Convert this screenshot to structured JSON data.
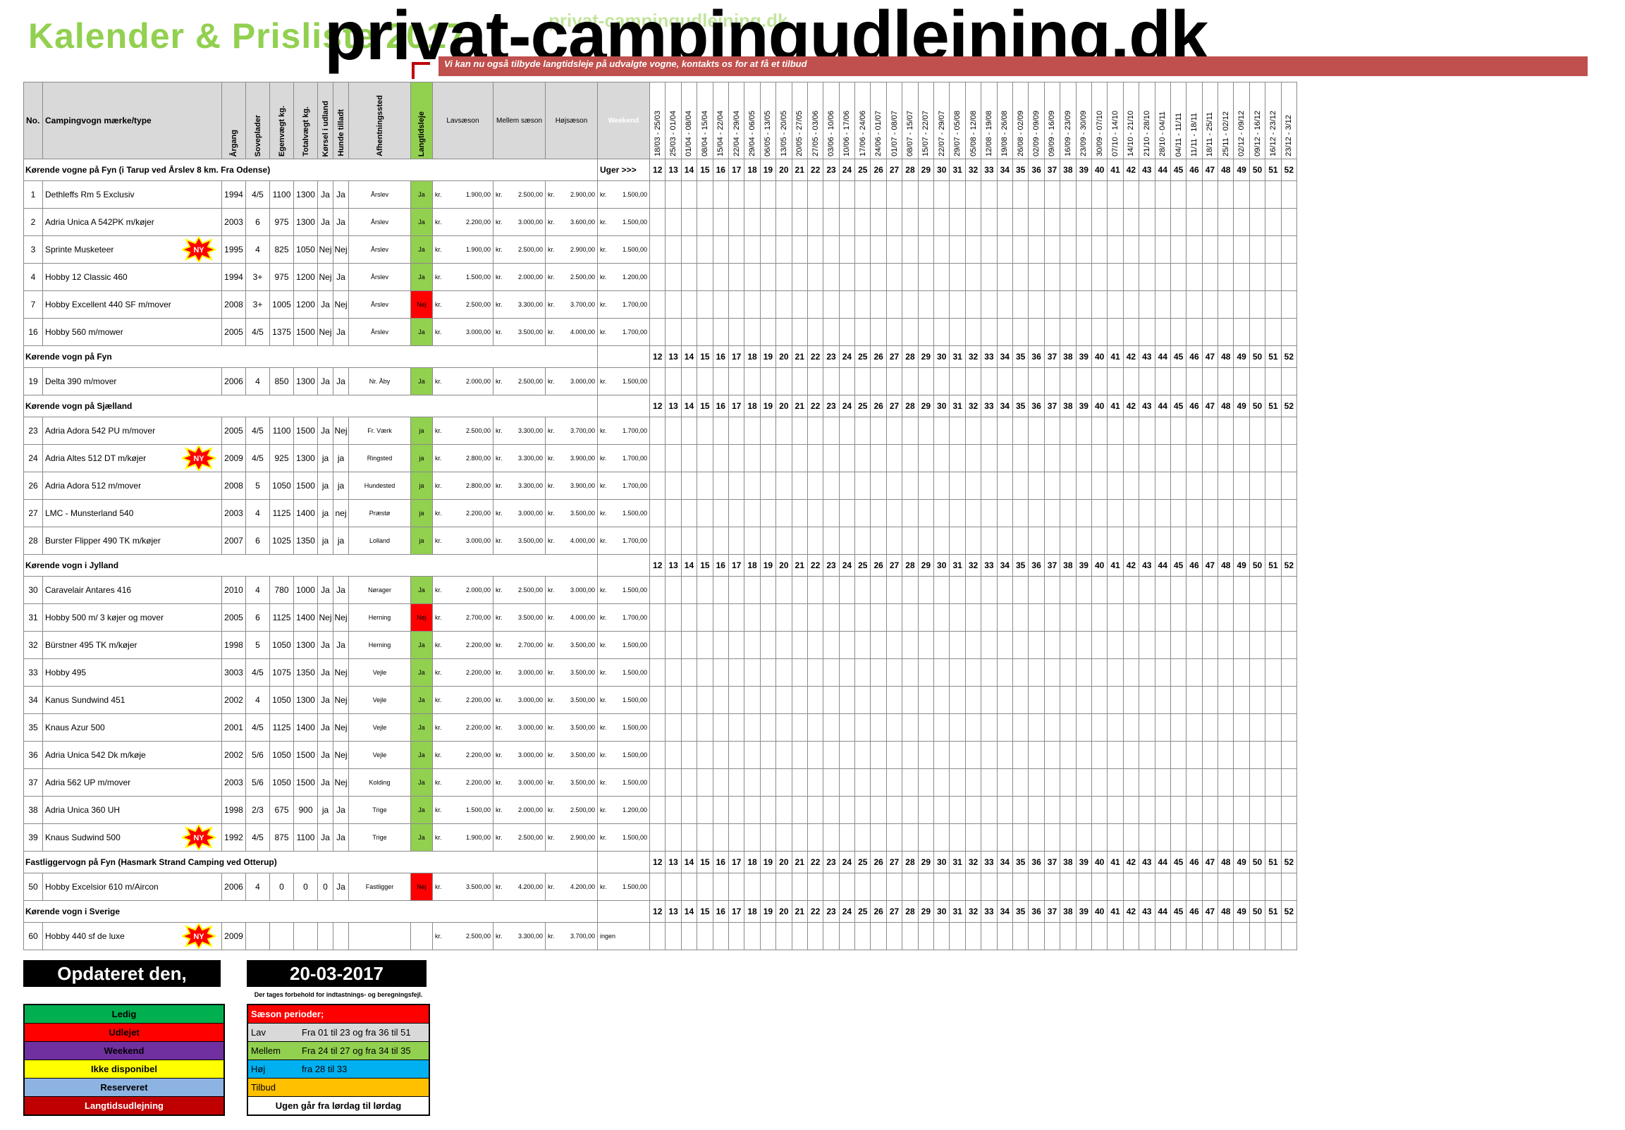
{
  "header": {
    "title": "Kalender & Prisliste 2017",
    "site": "privat-campingudlejning.dk",
    "site_faint": "privat-campingudlejning.dk",
    "banner": "Vi kan nu også tilbyde langtidsleje på udvalgte vogne, kontakts os for at få et tilbud"
  },
  "columns": {
    "no": "No.",
    "name": "Campingvogn mærke/type",
    "year": "Årgang",
    "beds": "Soveplader",
    "weight": "Egenvægt kg.",
    "total": "Totalvægt kg.",
    "abroad": "Kørsel i udland",
    "dogs": "Hunde tilladt",
    "pickup": "Afhentningssted",
    "longterm": "Langtidsleje",
    "low": "Lavsæson",
    "mid": "Mellem sæson",
    "high": "Højsæson",
    "weekend": "Weekend"
  },
  "week_dates": [
    "18/03 - 25/03",
    "25/03 - 01/04",
    "01/04 - 08/04",
    "08/04 - 15/04",
    "15/04 - 22/04",
    "22/04 - 29/04",
    "29/04 - 06/05",
    "06/05 - 13/05",
    "13/05 - 20/05",
    "20/05 - 27/05",
    "27/05 - 03/06",
    "03/06 - 10/06",
    "10/06 - 17/06",
    "17/06 - 24/06",
    "24/06 - 01/07",
    "01/07 - 08/07",
    "08/07 - 15/07",
    "15/07 - 22/07",
    "22/07 - 29/07",
    "29/07 - 05/08",
    "05/08 - 12/08",
    "12/08 - 19/08",
    "19/08 - 26/08",
    "26/08 - 02/09",
    "02/09 - 09/09",
    "09/09 - 16/09",
    "16/09 - 23/09",
    "23/09 - 30/09",
    "30/09 - 07/10",
    "07/10 - 14/10",
    "14/10 - 21/10",
    "21/10 - 28/10",
    "28/10 - 04/11",
    "04/11 - 11/11",
    "11/11 - 18/11",
    "18/11 - 25/11",
    "25/11 - 02/12",
    "02/12 - 09/12",
    "09/12 - 16/12",
    "16/12 - 23/12",
    "23/12 - 3/12"
  ],
  "weeks": [
    "12",
    "13",
    "14",
    "15",
    "16",
    "17",
    "18",
    "19",
    "20",
    "21",
    "22",
    "23",
    "24",
    "25",
    "26",
    "27",
    "28",
    "29",
    "30",
    "31",
    "32",
    "33",
    "34",
    "35",
    "36",
    "37",
    "38",
    "39",
    "40",
    "41",
    "42",
    "43",
    "44",
    "45",
    "46",
    "47",
    "48",
    "49",
    "50",
    "51",
    "52"
  ],
  "week_season": [
    "l",
    "l",
    "l",
    "o",
    "o",
    "l",
    "l",
    "o",
    "l",
    "o",
    "l",
    "o",
    "m",
    "m",
    "m",
    "m",
    "h",
    "h",
    "h",
    "h",
    "h",
    "m",
    "m",
    "m",
    "l",
    "l",
    "l",
    "l",
    "l",
    "l",
    "o",
    "l",
    "l",
    "l",
    "l",
    "l",
    "l",
    "l",
    "l",
    "o",
    "o"
  ],
  "uger_label": "Uger >>>",
  "sections": [
    {
      "label": "Kørende vogne på Fyn (i Tarup ved Årslev 8 km. Fra Odense)",
      "has_uger": true,
      "rows": [
        {
          "no": "1",
          "name": "Dethleffs Rm 5 Exclusiv",
          "ny": false,
          "year": "1994",
          "beds": "4/5",
          "weight": "1100",
          "total": "1300",
          "abroad": "Ja",
          "dogs": "Ja",
          "pickup": "Årslev",
          "lt": "Ja",
          "low": "1.900,00",
          "mid": "2.500,00",
          "high": "2.900,00",
          "wknd": "1.500,00",
          "cal": "GGGGGGGGGGPGGGGGRGRRRGGGGGGGGGGGGGGGGGGGG"
        },
        {
          "no": "2",
          "name": "Adria Unica A 542PK m/køjer",
          "ny": false,
          "year": "2003",
          "beds": "6",
          "weight": "975",
          "total": "1300",
          "abroad": "Ja",
          "dogs": "Ja",
          "pickup": "Årslev",
          "lt": "Ja",
          "low": "2.200,00",
          "mid": "3.000,00",
          "high": "3.600,00",
          "wknd": "1.500,00",
          "cal": "GGGGGGGGGGGGGGGGRRGPGGGGGGGGGGGGGGGGGGGGG"
        },
        {
          "no": "3",
          "name": "Sprinte Musketeer",
          "ny": true,
          "year": "1995",
          "beds": "4",
          "weight": "825",
          "total": "1050",
          "abroad": "Nej",
          "dogs": "Nej",
          "pickup": "Årslev",
          "lt": "Ja",
          "low": "1.900,00",
          "mid": "2.500,00",
          "high": "2.900,00",
          "wknd": "1.500,00",
          "cal": "GGGGGGGGGGGGGGGGGRGGGGGGGGGGGGGGGGGGGGGGG"
        },
        {
          "no": "4",
          "name": "Hobby 12 Classic 460",
          "ny": false,
          "year": "1994",
          "beds": "3+",
          "weight": "975",
          "total": "1200",
          "abroad": "Nej",
          "dogs": "Ja",
          "pickup": "Årslev",
          "lt": "Ja",
          "low": "1.500,00",
          "mid": "2.000,00",
          "high": "2.500,00",
          "wknd": "1.200,00",
          "cal": "GGGGGGGGGGGRGGGGRRGGGGGGGGGGGGGGGGGGGGGGG"
        },
        {
          "no": "7",
          "name": "Hobby  Excellent 440 SF m/mover",
          "ny": false,
          "year": "2008",
          "beds": "3+",
          "weight": "1005",
          "total": "1200",
          "abroad": "Ja",
          "dogs": "Nej",
          "pickup": "Årslev",
          "lt": "Nej",
          "low": "2.500,00",
          "mid": "3.300,00",
          "high": "3.700,00",
          "wknd": "1.700,00",
          "cal": "YYYYGGGGGGGGGGGGGRGGYYGGGGGGGGGGGGGGGGGGG"
        },
        {
          "no": "16",
          "name": "Hobby 560 m/mower",
          "ny": false,
          "year": "2005",
          "beds": "4/5",
          "weight": "1375",
          "total": "1500",
          "abroad": "Nej",
          "dogs": "Ja",
          "pickup": "Årslev",
          "lt": "Ja",
          "low": "3.000,00",
          "mid": "3.500,00",
          "high": "4.000,00",
          "wknd": "1.700,00",
          "cal": "GGGGGGGGGGGGGGRRGRRGPGGGGGGGGGGGGGGGGGGGG"
        }
      ]
    },
    {
      "label": "Kørende vogn på Fyn",
      "has_uger": false,
      "rows": [
        {
          "no": "19",
          "name": "Delta 390 m/mover",
          "ny": false,
          "year": "2006",
          "beds": "4",
          "weight": "850",
          "total": "1300",
          "abroad": "Ja",
          "dogs": "Ja",
          "pickup": "Nr. Åby",
          "lt": "Ja",
          "low": "2.000,00",
          "mid": "2.500,00",
          "high": "3.000,00",
          "wknd": "1.500,00",
          "cal": "GGGGGGGGGGGGPGGBBRGGPGGGGGGGGGGGGGGGGGGGG"
        }
      ]
    },
    {
      "label": "Kørende vogn på Sjælland",
      "has_uger": false,
      "rows": [
        {
          "no": "23",
          "name": "Adria Adora 542 PU  m/mover",
          "ny": false,
          "year": "2005",
          "beds": "4/5",
          "weight": "1100",
          "total": "1500",
          "abroad": "Ja",
          "dogs": "Nej",
          "pickup": "Fr. Værk",
          "lt": "ja",
          "low": "2.500,00",
          "mid": "3.300,00",
          "high": "3.700,00",
          "wknd": "1.700,00",
          "cal": "YYGGGGGGGPGGGGRRRRGGGYYYYGGGGGGGGGGGGGGGG"
        },
        {
          "no": "24",
          "name": "Adria Altes 512 DT m/køjer",
          "ny": true,
          "year": "2009",
          "beds": "4/5",
          "weight": "925",
          "total": "1300",
          "abroad": "ja",
          "dogs": "ja",
          "pickup": "Ringsted",
          "lt": "ja",
          "low": "2.800,00",
          "mid": "3.300,00",
          "high": "3.900,00",
          "wknd": "1.700,00",
          "cal": "GGGGPPGPGYGPGGGYYRGGGPGPGPGGGGGGGGGGGGGGG"
        },
        {
          "no": "26",
          "name": "Adria Adora 512  m/mover",
          "ny": false,
          "year": "2008",
          "beds": "5",
          "weight": "1050",
          "total": "1500",
          "abroad": "ja",
          "dogs": "ja",
          "pickup": "Hundested",
          "lt": "ja",
          "low": "2.800,00",
          "mid": "3.300,00",
          "high": "3.900,00",
          "wknd": "1.700,00",
          "cal": "GGGRGGGGGPGGGGRRGGGGGYYYGGGGGGGGGGGGGGGGG"
        },
        {
          "no": "27",
          "name": "LMC - Munsterland 540",
          "ny": false,
          "year": "2003",
          "beds": "4",
          "weight": "1125",
          "total": "1400",
          "abroad": "ja",
          "dogs": "nej",
          "pickup": "Præstø",
          "lt": "ja",
          "low": "2.200,00",
          "mid": "3.000,00",
          "high": "3.500,00",
          "wknd": "1.500,00",
          "cal": "GGGYYGGGGGGGGGGGRRGGGGGGGGGGGGGGGGGGGGGGG"
        },
        {
          "no": "28",
          "name": "Burster Flipper  490 TK m/køjer",
          "ny": false,
          "year": "2007",
          "beds": "6",
          "weight": "1025",
          "total": "1350",
          "abroad": "ja",
          "dogs": "ja",
          "pickup": "Lolland",
          "lt": "ja",
          "low": "3.000,00",
          "mid": "3.500,00",
          "high": "4.000,00",
          "wknd": "1.700,00",
          "cal": "GGGGGGGRGGGGGGRGRGGGGGGGGGGGGGGGGGGGGGGGG"
        }
      ]
    },
    {
      "label": "Kørende vogn i Jylland",
      "has_uger": false,
      "rows": [
        {
          "no": "30",
          "name": "Caravelair Antares 416",
          "ny": false,
          "year": "2010",
          "beds": "4",
          "weight": "780",
          "total": "1000",
          "abroad": "Ja",
          "dogs": "Ja",
          "pickup": "Nørager",
          "lt": "Ja",
          "low": "2.000,00",
          "mid": "2.500,00",
          "high": "3.000,00",
          "wknd": "1.500,00",
          "cal": "GGGGGGGGGGGGGGRRRRRGGGGGGGGGGGGGGGGGGGGGG"
        },
        {
          "no": "31",
          "name": "Hobby 500 m/ 3 køjer og mover",
          "ny": false,
          "year": "2005",
          "beds": "6",
          "weight": "1125",
          "total": "1400",
          "abroad": "Nej",
          "dogs": "Nej",
          "pickup": "Herning",
          "lt": "Nej",
          "low": "2.700,00",
          "mid": "3.500,00",
          "high": "4.000,00",
          "wknd": "1.700,00",
          "cal": "YYYGGGGGGGGGGGGGGRRGGGGGGGGGGGGGGGGGGGGGG"
        },
        {
          "no": "32",
          "name": "Bürstner 495 TK m/køjer",
          "ny": false,
          "year": "1998",
          "beds": "5",
          "weight": "1050",
          "total": "1300",
          "abroad": "Ja",
          "dogs": "Ja",
          "pickup": "Herning",
          "lt": "Ja",
          "low": "2.200,00",
          "mid": "2.700,00",
          "high": "3.500,00",
          "wknd": "1.500,00",
          "cal": "GGGGGGGGGGGGGGRRGRRGGGGGGGGGGGGGGGGGGGGGG"
        },
        {
          "no": "33",
          "name": "Hobby 495",
          "ny": false,
          "year": "3003",
          "beds": "4/5",
          "weight": "1075",
          "total": "1350",
          "abroad": "Ja",
          "dogs": "Nej",
          "pickup": "Vejle",
          "lt": "Ja",
          "low": "2.200,00",
          "mid": "3.000,00",
          "high": "3.500,00",
          "wknd": "1.500,00",
          "cal": "GGGGGGGGGGGGGGGRGRGGGGGGGGGGGGGGGGGGGGGGG"
        },
        {
          "no": "34",
          "name": "Kanus Sundwind 451",
          "ny": false,
          "year": "2002",
          "beds": "4",
          "weight": "1050",
          "total": "1300",
          "abroad": "Ja",
          "dogs": "Nej",
          "pickup": "Vejle",
          "lt": "Ja",
          "low": "2.200,00",
          "mid": "3.000,00",
          "high": "3.500,00",
          "wknd": "1.500,00",
          "cal": "LLLLLLLLLLLGGGGGGRGGGGGGGGGGGGGGGGGGGGGGG"
        },
        {
          "no": "35",
          "name": "Knaus Azur 500",
          "ny": false,
          "year": "2001",
          "beds": "4/5",
          "weight": "1125",
          "total": "1400",
          "abroad": "Ja",
          "dogs": "Nej",
          "pickup": "Vejle",
          "lt": "Ja",
          "low": "2.200,00",
          "mid": "3.000,00",
          "high": "3.500,00",
          "wknd": "1.500,00",
          "cal": "LLLLLLLLLLLLGGGGGRGGGGGGGGGGGGGGGGGGGGGGG"
        },
        {
          "no": "36",
          "name": "Adria Unica 542 Dk m/køje",
          "ny": false,
          "year": "2002",
          "beds": "5/6",
          "weight": "1050",
          "total": "1500",
          "abroad": "Ja",
          "dogs": "Nej",
          "pickup": "Vejle",
          "lt": "Ja",
          "low": "2.200,00",
          "mid": "3.000,00",
          "high": "3.500,00",
          "wknd": "1.500,00",
          "cal": "LLLGGGGGGGGGGGGRRRGGGGGGGGGGGGGGGGGGGGGGG"
        },
        {
          "no": "37",
          "name": "Adria 562 UP m/mover",
          "ny": false,
          "year": "2003",
          "beds": "5/6",
          "weight": "1050",
          "total": "1500",
          "abroad": "Ja",
          "dogs": "Nej",
          "pickup": "Kolding",
          "lt": "Ja",
          "low": "2.200,00",
          "mid": "3.000,00",
          "high": "3.500,00",
          "wknd": "1.500,00",
          "cal": "GGGGGGGGGGGGGGGRRRGGGGGGGGGGGGGGGGGGGGGGG"
        },
        {
          "no": "38",
          "name": "Adria Unica 360 UH",
          "ny": false,
          "year": "1998",
          "beds": "2/3",
          "weight": "675",
          "total": "900",
          "abroad": "ja",
          "dogs": "Ja",
          "pickup": "Trige",
          "lt": "Ja",
          "low": "1.500,00",
          "mid": "2.000,00",
          "high": "2.500,00",
          "wknd": "1.200,00",
          "cal": "GGGGGGGGGGGGGGGGGRGGGGGGGGGGGGGGGGGGGGGGG"
        },
        {
          "no": "39",
          "name": "Knaus Sudwind 500",
          "ny": true,
          "year": "1992",
          "beds": "4/5",
          "weight": "875",
          "total": "1100",
          "abroad": "Ja",
          "dogs": "Ja",
          "pickup": "Trige",
          "lt": "Ja",
          "low": "1.900,00",
          "mid": "2.500,00",
          "high": "2.900,00",
          "wknd": "1.500,00",
          "cal": "GGGGGGGGGGGGGGGGGRGGGGGGGGGGGGGGGGGGGGGGG"
        }
      ]
    },
    {
      "label": "Fastliggervogn på Fyn (Hasmark Strand Camping ved Otterup)",
      "has_uger": false,
      "rows": [
        {
          "no": "50",
          "name": "Hobby Excelsior 610 m/Aircon",
          "ny": false,
          "year": "2006",
          "beds": "4",
          "weight": "0",
          "total": "0",
          "abroad": "0",
          "dogs": "Ja",
          "pickup": "Fastligger",
          "lt": "Nej",
          "low": "3.500,00",
          "mid": "4.200,00",
          "high": "4.200,00",
          "wknd": "1.500,00",
          "cal": "YYYGGGGGGGGGGGGGRGGGGGGGYYYYYYYYYYYYYYYYY"
        }
      ]
    },
    {
      "label": "Kørende vogn i Sverige",
      "has_uger": false,
      "rows": [
        {
          "no": "60",
          "name": "Hobby 440 sf de luxe",
          "ny": true,
          "year": "2009",
          "beds": "",
          "weight": "",
          "total": "",
          "abroad": "",
          "dogs": "",
          "pickup": "",
          "lt": "",
          "low": "2.500,00",
          "mid": "3.300,00",
          "high": "3.700,00",
          "wknd": "ingen",
          "cal": "GGGGGGGGGGGGGGGGGGGGGGGGGGGGGGGGGGGGGGGGG"
        }
      ]
    }
  ],
  "kr": "kr.",
  "ny": "NY",
  "footer": {
    "updated_label": "Opdateret den,",
    "updated_date": "20-03-2017",
    "disclaimer": "Der tages forbehold for indtastnings- og beregningsfejl."
  },
  "legend": [
    "Ledig",
    "Udlejet",
    "Weekend",
    "Ikke disponibel",
    "Reserveret",
    "Langtidsudlejning"
  ],
  "seasons": {
    "head": "Sæson perioder;",
    "low_k": "Lav",
    "low_v": "Fra 01 til 23 og fra 36 til 51",
    "mid_k": "Mellem",
    "mid_v": "Fra 24 til 27 og fra 34 til 35",
    "high_k": "Høj",
    "high_v": "fra 28 til 33",
    "offer_k": "Tilbud",
    "foot": "Ugen går fra lørdag til lørdag"
  },
  "colors": {
    "ledig": "#00b050",
    "udlejet": "#ff0000",
    "weekend": "#7030a0",
    "ikke_disponibel": "#ffff00",
    "reserveret": "#8db3e2",
    "langtid": "#c00000",
    "title_green": "#92d050",
    "banner": "#c0504d"
  }
}
